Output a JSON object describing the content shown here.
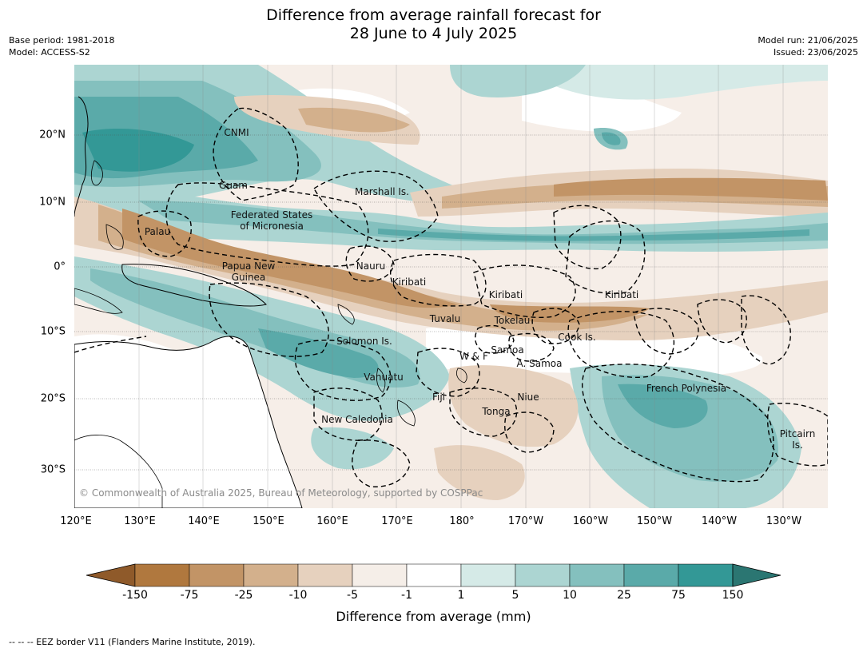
{
  "title": {
    "line1": "Difference from average rainfall forecast for",
    "line2": "28 June to 4 July 2025"
  },
  "meta_left": {
    "base_period": "Base period: 1981-2018",
    "model": "Model: ACCESS-S2"
  },
  "meta_right": {
    "model_run": "Model run: 21/06/2025",
    "issued": "Issued: 23/06/2025"
  },
  "lat_labels": [
    "20°N",
    "10°N",
    "0°",
    "10°S",
    "20°S",
    "30°S"
  ],
  "lon_labels": [
    "120°E",
    "130°E",
    "140°E",
    "150°E",
    "160°E",
    "170°E",
    "180°",
    "170°W",
    "160°W",
    "150°W",
    "140°W",
    "130°W"
  ],
  "regions": {
    "cnmi": "CNMI",
    "guam": "Guam",
    "marshall": "Marshall Is.",
    "fsm1": "Federated States",
    "fsm2": "of Micronesia",
    "palau": "Palau",
    "png1": "Papua New",
    "png2": "Guinea",
    "nauru": "Nauru",
    "kiribati_w": "Kiribati",
    "kiribati_c": "Kiribati",
    "kiribati_e": "Kiribati",
    "tuvalu": "Tuvalu",
    "tokelau": "Tokelau",
    "cook": "Cook Is.",
    "solomon": "Solomon Is.",
    "wf": "W & F",
    "samoa": "Samoa",
    "asamoa": "A. Samoa",
    "vanuatu": "Vanuatu",
    "fiji": "Fiji",
    "niue": "Niue",
    "tonga": "Tonga",
    "newcal": "New Caledonia",
    "frpoly": "French Polynesia",
    "pitcairn1": "Pitcairn",
    "pitcairn2": "Is."
  },
  "copyright": "© Commonwealth of Australia 2025, Bureau of Meteorology, supported by COSPPac",
  "colorbar": {
    "labels": [
      "-150",
      "-75",
      "-25",
      "-10",
      "-5",
      "-1",
      "1",
      "5",
      "10",
      "25",
      "75",
      "150"
    ],
    "colors": [
      "#8f5a2a",
      "#b0783e",
      "#c29466",
      "#d3b08c",
      "#e6d1be",
      "#f5eee8",
      "#ffffff",
      "#d5eae7",
      "#acd5d2",
      "#84c0be",
      "#5aaaa9",
      "#339896",
      "#2b7672"
    ],
    "title": "Difference from average (mm)"
  },
  "footer": "--  --  -- EEZ border V11 (Flanders Marine Institute, 2019)."
}
